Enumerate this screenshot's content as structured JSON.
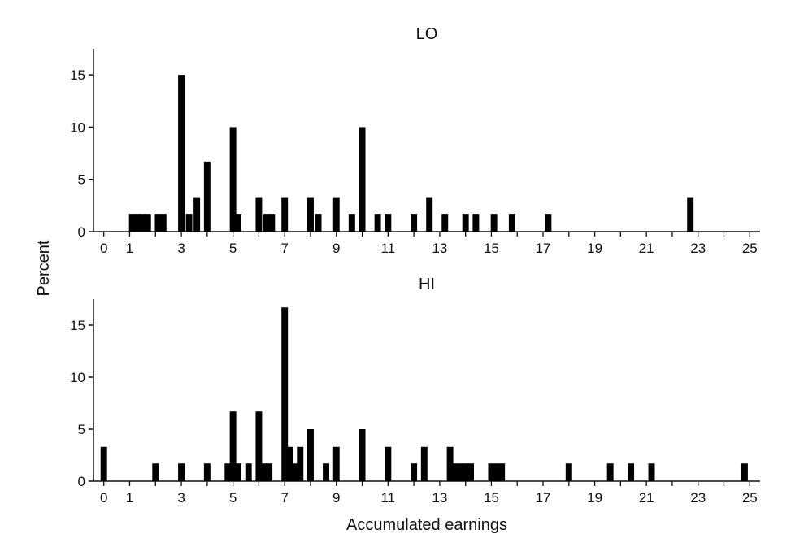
{
  "chart_data": [
    {
      "type": "bar",
      "title": "LO",
      "xlabel": "",
      "ylabel": "",
      "xlim": [
        -0.4,
        25.4
      ],
      "ylim": [
        0,
        17.5
      ],
      "xticks": [
        0,
        1,
        3,
        5,
        7,
        9,
        11,
        13,
        15,
        17,
        19,
        21,
        23,
        25
      ],
      "yticks": [
        0,
        5,
        10,
        15
      ],
      "grid": false,
      "bar_width": 0.25,
      "bars": [
        {
          "x": 1.1,
          "y": 1.7
        },
        {
          "x": 1.3,
          "y": 1.7
        },
        {
          "x": 1.5,
          "y": 1.7
        },
        {
          "x": 1.7,
          "y": 1.7
        },
        {
          "x": 2.1,
          "y": 1.7
        },
        {
          "x": 2.3,
          "y": 1.7
        },
        {
          "x": 3.0,
          "y": 15.0
        },
        {
          "x": 3.3,
          "y": 1.7
        },
        {
          "x": 3.6,
          "y": 3.3
        },
        {
          "x": 4.0,
          "y": 6.7
        },
        {
          "x": 5.0,
          "y": 10.0
        },
        {
          "x": 5.2,
          "y": 1.7
        },
        {
          "x": 6.0,
          "y": 3.3
        },
        {
          "x": 6.3,
          "y": 1.7
        },
        {
          "x": 6.5,
          "y": 1.7
        },
        {
          "x": 7.0,
          "y": 3.3
        },
        {
          "x": 8.0,
          "y": 3.3
        },
        {
          "x": 8.3,
          "y": 1.7
        },
        {
          "x": 9.0,
          "y": 3.3
        },
        {
          "x": 9.6,
          "y": 1.7
        },
        {
          "x": 10.0,
          "y": 10.0
        },
        {
          "x": 10.6,
          "y": 1.7
        },
        {
          "x": 11.0,
          "y": 1.7
        },
        {
          "x": 12.0,
          "y": 1.7
        },
        {
          "x": 12.6,
          "y": 3.3
        },
        {
          "x": 13.2,
          "y": 1.7
        },
        {
          "x": 14.0,
          "y": 1.7
        },
        {
          "x": 14.4,
          "y": 1.7
        },
        {
          "x": 15.1,
          "y": 1.7
        },
        {
          "x": 15.8,
          "y": 1.7
        },
        {
          "x": 17.2,
          "y": 1.7
        },
        {
          "x": 22.7,
          "y": 3.3
        }
      ]
    },
    {
      "type": "bar",
      "title": "HI",
      "xlabel": "Accumulated earnings",
      "ylabel": "",
      "xlim": [
        -0.4,
        25.4
      ],
      "ylim": [
        0,
        17.5
      ],
      "xticks": [
        0,
        1,
        3,
        5,
        7,
        9,
        11,
        13,
        15,
        17,
        19,
        21,
        23,
        25
      ],
      "yticks": [
        0,
        5,
        10,
        15
      ],
      "grid": false,
      "bar_width": 0.25,
      "bars": [
        {
          "x": 0.0,
          "y": 3.3
        },
        {
          "x": 2.0,
          "y": 1.7
        },
        {
          "x": 3.0,
          "y": 1.7
        },
        {
          "x": 4.0,
          "y": 1.7
        },
        {
          "x": 4.8,
          "y": 1.7
        },
        {
          "x": 5.0,
          "y": 6.7
        },
        {
          "x": 5.2,
          "y": 1.7
        },
        {
          "x": 5.6,
          "y": 1.7
        },
        {
          "x": 6.0,
          "y": 6.7
        },
        {
          "x": 6.2,
          "y": 1.7
        },
        {
          "x": 6.4,
          "y": 1.7
        },
        {
          "x": 7.0,
          "y": 16.7
        },
        {
          "x": 7.2,
          "y": 3.3
        },
        {
          "x": 7.4,
          "y": 1.7
        },
        {
          "x": 7.6,
          "y": 3.3
        },
        {
          "x": 8.0,
          "y": 5.0
        },
        {
          "x": 8.6,
          "y": 1.7
        },
        {
          "x": 9.0,
          "y": 3.3
        },
        {
          "x": 10.0,
          "y": 5.0
        },
        {
          "x": 11.0,
          "y": 3.3
        },
        {
          "x": 12.0,
          "y": 1.7
        },
        {
          "x": 12.4,
          "y": 3.3
        },
        {
          "x": 13.4,
          "y": 3.3
        },
        {
          "x": 13.6,
          "y": 1.7
        },
        {
          "x": 13.8,
          "y": 1.7
        },
        {
          "x": 14.0,
          "y": 1.7
        },
        {
          "x": 14.2,
          "y": 1.7
        },
        {
          "x": 15.0,
          "y": 1.7
        },
        {
          "x": 15.2,
          "y": 1.7
        },
        {
          "x": 15.4,
          "y": 1.7
        },
        {
          "x": 18.0,
          "y": 1.7
        },
        {
          "x": 19.6,
          "y": 1.7
        },
        {
          "x": 20.4,
          "y": 1.7
        },
        {
          "x": 21.2,
          "y": 1.7
        },
        {
          "x": 24.8,
          "y": 1.7
        }
      ]
    }
  ],
  "shared": {
    "ylabel": "Percent",
    "bar_color": "#000000",
    "axis_color": "#111111"
  }
}
